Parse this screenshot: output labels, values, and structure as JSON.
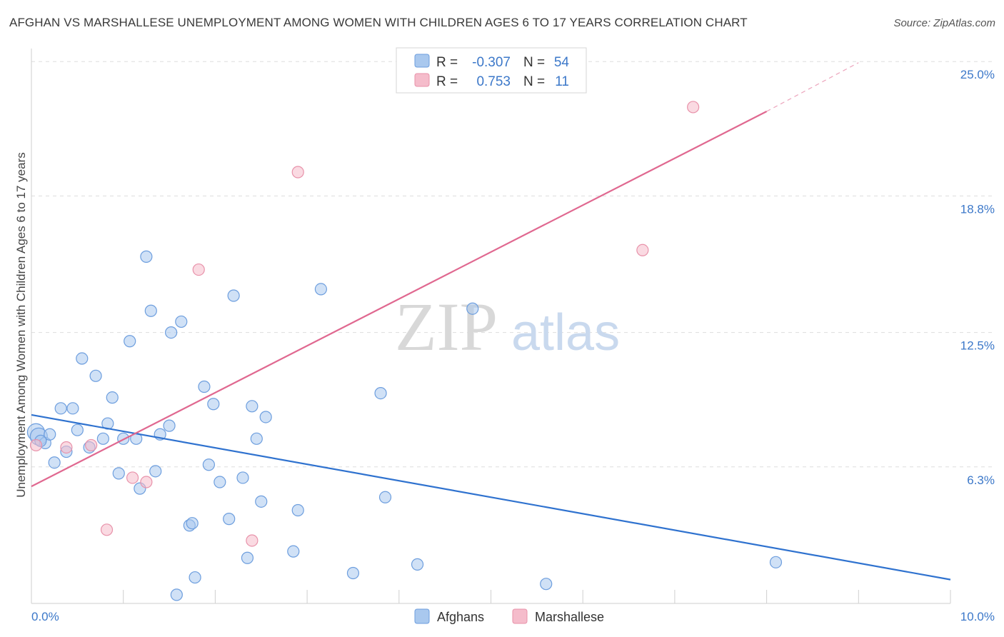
{
  "title": "AFGHAN VS MARSHALLESE UNEMPLOYMENT AMONG WOMEN WITH CHILDREN AGES 6 TO 17 YEARS CORRELATION CHART",
  "source": "Source: ZipAtlas.com",
  "watermark": {
    "zip": "ZIP",
    "atlas": "atlas"
  },
  "legend": {
    "rows": [
      {
        "r_label": "R =",
        "r_value": "-0.307",
        "n_label": "N =",
        "n_value": "54"
      },
      {
        "r_label": "R =",
        "r_value": "0.753",
        "n_label": "N =",
        "n_value": "11"
      }
    ]
  },
  "bottom_legend": [
    "Afghans",
    "Marshallese"
  ],
  "colors": {
    "afghans_fill": "#a9c8ee",
    "afghans_stroke": "#6d9ede",
    "afghans_line": "#2f72cf",
    "marshallese_fill": "#f5bccb",
    "marshallese_stroke": "#e892aa",
    "marshallese_line": "#e06890",
    "tick_text": "#3c78c9",
    "grid": "#dddddd"
  },
  "chart_data": {
    "type": "scatter",
    "ylabel": "Unemployment Among Women with Children Ages 6 to 17 years",
    "xlabel": "",
    "x_tick_labels": [
      "0.0%",
      "10.0%"
    ],
    "y_tick_labels": [
      "6.3%",
      "12.5%",
      "18.8%",
      "25.0%"
    ],
    "xlim": [
      0,
      10
    ],
    "ylim": [
      0,
      25.6
    ],
    "y_ticks": [
      6.3,
      12.5,
      18.8,
      25.0
    ],
    "grid": true,
    "series": [
      {
        "name": "Afghans",
        "points": [
          [
            0.05,
            7.9
          ],
          [
            0.08,
            7.7
          ],
          [
            0.15,
            7.4
          ],
          [
            0.2,
            7.8
          ],
          [
            0.25,
            6.5
          ],
          [
            0.32,
            9.0
          ],
          [
            0.38,
            7.0
          ],
          [
            0.45,
            9.0
          ],
          [
            0.5,
            8.0
          ],
          [
            0.55,
            11.3
          ],
          [
            0.63,
            7.2
          ],
          [
            0.7,
            10.5
          ],
          [
            0.78,
            7.6
          ],
          [
            0.83,
            8.3
          ],
          [
            0.88,
            9.5
          ],
          [
            0.95,
            6.0
          ],
          [
            1.0,
            7.6
          ],
          [
            1.07,
            12.1
          ],
          [
            1.14,
            7.6
          ],
          [
            1.18,
            5.3
          ],
          [
            1.25,
            16.0
          ],
          [
            1.3,
            13.5
          ],
          [
            1.35,
            6.1
          ],
          [
            1.4,
            7.8
          ],
          [
            1.5,
            8.2
          ],
          [
            1.52,
            12.5
          ],
          [
            1.58,
            0.4
          ],
          [
            1.63,
            13.0
          ],
          [
            1.72,
            3.6
          ],
          [
            1.75,
            3.7
          ],
          [
            1.78,
            1.2
          ],
          [
            1.88,
            10.0
          ],
          [
            1.93,
            6.4
          ],
          [
            1.98,
            9.2
          ],
          [
            2.05,
            5.6
          ],
          [
            2.15,
            3.9
          ],
          [
            2.2,
            14.2
          ],
          [
            2.3,
            5.8
          ],
          [
            2.35,
            2.1
          ],
          [
            2.4,
            9.1
          ],
          [
            2.45,
            7.6
          ],
          [
            2.5,
            4.7
          ],
          [
            2.55,
            8.6
          ],
          [
            2.85,
            2.4
          ],
          [
            2.9,
            4.3
          ],
          [
            3.15,
            14.5
          ],
          [
            3.5,
            1.4
          ],
          [
            3.8,
            9.7
          ],
          [
            3.85,
            4.9
          ],
          [
            4.2,
            1.8
          ],
          [
            4.8,
            13.6
          ],
          [
            5.6,
            0.9
          ],
          [
            8.1,
            1.9
          ],
          [
            0.1,
            7.5
          ]
        ],
        "trend": {
          "x": [
            0,
            10
          ],
          "y": [
            8.7,
            1.1
          ]
        }
      },
      {
        "name": "Marshallese",
        "points": [
          [
            0.05,
            7.3
          ],
          [
            0.38,
            7.2
          ],
          [
            0.65,
            7.3
          ],
          [
            0.82,
            3.4
          ],
          [
            1.1,
            5.8
          ],
          [
            1.25,
            5.6
          ],
          [
            1.82,
            15.4
          ],
          [
            2.4,
            2.9
          ],
          [
            2.9,
            19.9
          ],
          [
            6.65,
            16.3
          ],
          [
            7.2,
            22.9
          ]
        ],
        "trend": {
          "x": [
            0,
            8.0
          ],
          "y": [
            5.4,
            22.7
          ]
        },
        "trend_dashed": {
          "x": [
            8.0,
            9.0
          ],
          "y": [
            22.7,
            24.95
          ]
        }
      }
    ]
  }
}
